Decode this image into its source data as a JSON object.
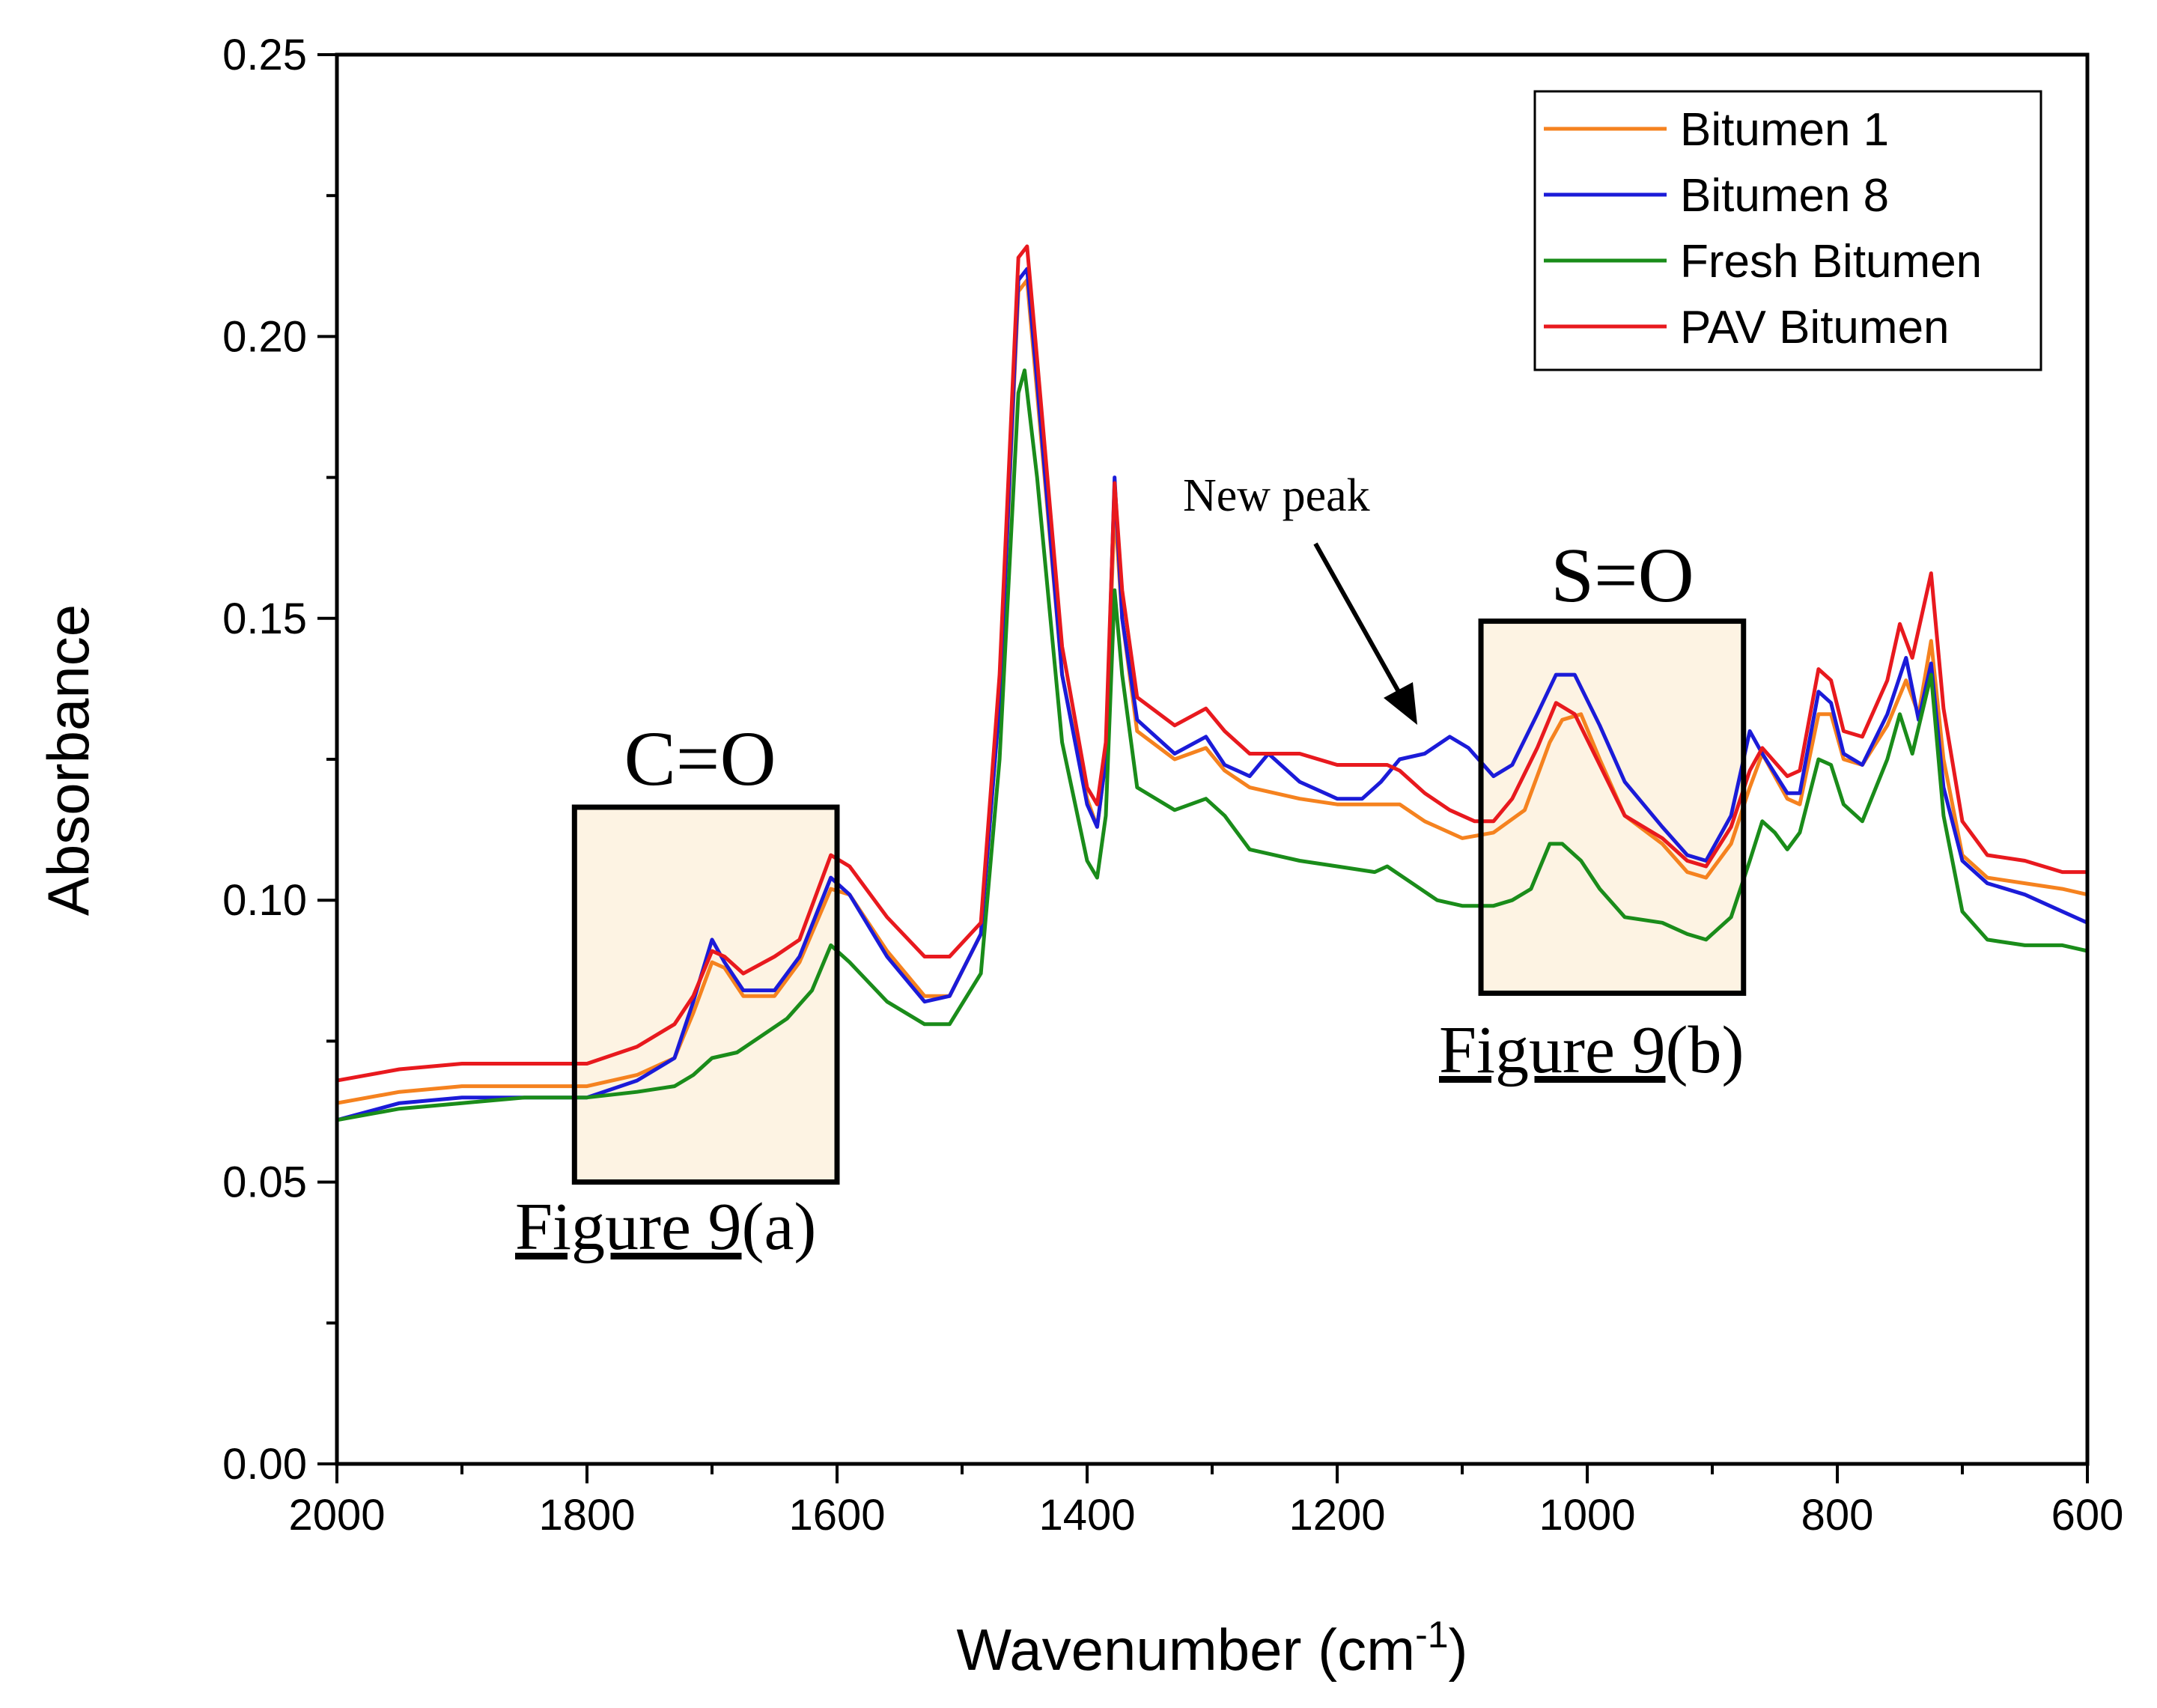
{
  "chart_data": {
    "type": "line",
    "xlabel": "Wavenumber (cm",
    "xlabel_superscript": "-1",
    "xlabel_close": ")",
    "ylabel": "Absorbance",
    "xlim": [
      2000,
      600
    ],
    "ylim": [
      0.0,
      0.25
    ],
    "x_ticks": [
      2000,
      1800,
      1600,
      1400,
      1200,
      1000,
      800,
      600
    ],
    "x_tick_labels": [
      "2000",
      "1800",
      "1600",
      "1400",
      "1200",
      "1000",
      "800",
      "600"
    ],
    "y_ticks": [
      0.0,
      0.05,
      0.1,
      0.15,
      0.2,
      0.25
    ],
    "y_tick_labels": [
      "0.00",
      "0.05",
      "0.10",
      "0.15",
      "0.20",
      "0.25"
    ],
    "grid": false,
    "legend_position": "top-right",
    "series": [
      {
        "name": "Bitumen 1",
        "color": "#f5821f",
        "points": [
          [
            2000,
            0.064
          ],
          [
            1950,
            0.066
          ],
          [
            1900,
            0.067
          ],
          [
            1850,
            0.067
          ],
          [
            1800,
            0.067
          ],
          [
            1760,
            0.069
          ],
          [
            1730,
            0.072
          ],
          [
            1715,
            0.08
          ],
          [
            1700,
            0.089
          ],
          [
            1690,
            0.088
          ],
          [
            1675,
            0.083
          ],
          [
            1650,
            0.083
          ],
          [
            1630,
            0.089
          ],
          [
            1605,
            0.102
          ],
          [
            1590,
            0.101
          ],
          [
            1560,
            0.091
          ],
          [
            1530,
            0.083
          ],
          [
            1510,
            0.083
          ],
          [
            1485,
            0.094
          ],
          [
            1470,
            0.135
          ],
          [
            1455,
            0.208
          ],
          [
            1448,
            0.21
          ],
          [
            1440,
            0.19
          ],
          [
            1420,
            0.14
          ],
          [
            1400,
            0.118
          ],
          [
            1392,
            0.113
          ],
          [
            1385,
            0.125
          ],
          [
            1378,
            0.17
          ],
          [
            1372,
            0.15
          ],
          [
            1360,
            0.13
          ],
          [
            1330,
            0.125
          ],
          [
            1305,
            0.127
          ],
          [
            1290,
            0.123
          ],
          [
            1270,
            0.12
          ],
          [
            1230,
            0.118
          ],
          [
            1200,
            0.117
          ],
          [
            1170,
            0.117
          ],
          [
            1150,
            0.117
          ],
          [
            1130,
            0.114
          ],
          [
            1100,
            0.111
          ],
          [
            1075,
            0.112
          ],
          [
            1050,
            0.116
          ],
          [
            1030,
            0.128
          ],
          [
            1020,
            0.132
          ],
          [
            1005,
            0.133
          ],
          [
            990,
            0.125
          ],
          [
            970,
            0.115
          ],
          [
            940,
            0.11
          ],
          [
            920,
            0.105
          ],
          [
            905,
            0.104
          ],
          [
            885,
            0.11
          ],
          [
            870,
            0.12
          ],
          [
            860,
            0.126
          ],
          [
            840,
            0.118
          ],
          [
            830,
            0.117
          ],
          [
            815,
            0.133
          ],
          [
            805,
            0.133
          ],
          [
            795,
            0.125
          ],
          [
            780,
            0.124
          ],
          [
            760,
            0.131
          ],
          [
            745,
            0.139
          ],
          [
            735,
            0.133
          ],
          [
            725,
            0.146
          ],
          [
            715,
            0.125
          ],
          [
            700,
            0.108
          ],
          [
            680,
            0.104
          ],
          [
            650,
            0.103
          ],
          [
            620,
            0.102
          ],
          [
            600,
            0.101
          ]
        ]
      },
      {
        "name": "Bitumen 8",
        "color": "#1b1bd8",
        "points": [
          [
            2000,
            0.061
          ],
          [
            1950,
            0.064
          ],
          [
            1900,
            0.065
          ],
          [
            1850,
            0.065
          ],
          [
            1800,
            0.065
          ],
          [
            1760,
            0.068
          ],
          [
            1730,
            0.072
          ],
          [
            1715,
            0.082
          ],
          [
            1700,
            0.093
          ],
          [
            1690,
            0.089
          ],
          [
            1675,
            0.084
          ],
          [
            1650,
            0.084
          ],
          [
            1630,
            0.09
          ],
          [
            1605,
            0.104
          ],
          [
            1590,
            0.101
          ],
          [
            1560,
            0.09
          ],
          [
            1530,
            0.082
          ],
          [
            1510,
            0.083
          ],
          [
            1485,
            0.094
          ],
          [
            1470,
            0.135
          ],
          [
            1455,
            0.21
          ],
          [
            1448,
            0.212
          ],
          [
            1440,
            0.192
          ],
          [
            1420,
            0.14
          ],
          [
            1400,
            0.117
          ],
          [
            1392,
            0.113
          ],
          [
            1385,
            0.125
          ],
          [
            1378,
            0.175
          ],
          [
            1372,
            0.15
          ],
          [
            1360,
            0.132
          ],
          [
            1330,
            0.126
          ],
          [
            1305,
            0.129
          ],
          [
            1290,
            0.124
          ],
          [
            1270,
            0.122
          ],
          [
            1255,
            0.126
          ],
          [
            1230,
            0.121
          ],
          [
            1200,
            0.118
          ],
          [
            1180,
            0.118
          ],
          [
            1165,
            0.121
          ],
          [
            1150,
            0.125
          ],
          [
            1130,
            0.126
          ],
          [
            1110,
            0.129
          ],
          [
            1095,
            0.127
          ],
          [
            1075,
            0.122
          ],
          [
            1060,
            0.124
          ],
          [
            1040,
            0.133
          ],
          [
            1025,
            0.14
          ],
          [
            1010,
            0.14
          ],
          [
            990,
            0.131
          ],
          [
            970,
            0.121
          ],
          [
            940,
            0.113
          ],
          [
            920,
            0.108
          ],
          [
            905,
            0.107
          ],
          [
            885,
            0.115
          ],
          [
            870,
            0.13
          ],
          [
            860,
            0.126
          ],
          [
            840,
            0.119
          ],
          [
            830,
            0.119
          ],
          [
            815,
            0.137
          ],
          [
            805,
            0.135
          ],
          [
            795,
            0.126
          ],
          [
            780,
            0.124
          ],
          [
            760,
            0.133
          ],
          [
            745,
            0.143
          ],
          [
            735,
            0.132
          ],
          [
            725,
            0.142
          ],
          [
            715,
            0.12
          ],
          [
            700,
            0.107
          ],
          [
            680,
            0.103
          ],
          [
            650,
            0.101
          ],
          [
            620,
            0.098
          ],
          [
            600,
            0.096
          ]
        ]
      },
      {
        "name": "Fresh Bitumen",
        "color": "#1a8c1a",
        "points": [
          [
            2000,
            0.061
          ],
          [
            1950,
            0.063
          ],
          [
            1900,
            0.064
          ],
          [
            1850,
            0.065
          ],
          [
            1800,
            0.065
          ],
          [
            1760,
            0.066
          ],
          [
            1730,
            0.067
          ],
          [
            1715,
            0.069
          ],
          [
            1700,
            0.072
          ],
          [
            1680,
            0.073
          ],
          [
            1660,
            0.076
          ],
          [
            1640,
            0.079
          ],
          [
            1620,
            0.084
          ],
          [
            1605,
            0.092
          ],
          [
            1590,
            0.089
          ],
          [
            1560,
            0.082
          ],
          [
            1530,
            0.078
          ],
          [
            1510,
            0.078
          ],
          [
            1485,
            0.087
          ],
          [
            1470,
            0.125
          ],
          [
            1455,
            0.19
          ],
          [
            1450,
            0.194
          ],
          [
            1440,
            0.175
          ],
          [
            1420,
            0.128
          ],
          [
            1400,
            0.107
          ],
          [
            1392,
            0.104
          ],
          [
            1385,
            0.115
          ],
          [
            1378,
            0.155
          ],
          [
            1372,
            0.14
          ],
          [
            1360,
            0.12
          ],
          [
            1330,
            0.116
          ],
          [
            1305,
            0.118
          ],
          [
            1290,
            0.115
          ],
          [
            1270,
            0.109
          ],
          [
            1230,
            0.107
          ],
          [
            1200,
            0.106
          ],
          [
            1170,
            0.105
          ],
          [
            1160,
            0.106
          ],
          [
            1140,
            0.103
          ],
          [
            1120,
            0.1
          ],
          [
            1100,
            0.099
          ],
          [
            1075,
            0.099
          ],
          [
            1060,
            0.1
          ],
          [
            1045,
            0.102
          ],
          [
            1030,
            0.11
          ],
          [
            1020,
            0.11
          ],
          [
            1005,
            0.107
          ],
          [
            990,
            0.102
          ],
          [
            970,
            0.097
          ],
          [
            940,
            0.096
          ],
          [
            920,
            0.094
          ],
          [
            905,
            0.093
          ],
          [
            885,
            0.097
          ],
          [
            870,
            0.107
          ],
          [
            860,
            0.114
          ],
          [
            850,
            0.112
          ],
          [
            840,
            0.109
          ],
          [
            830,
            0.112
          ],
          [
            815,
            0.125
          ],
          [
            805,
            0.124
          ],
          [
            795,
            0.117
          ],
          [
            780,
            0.114
          ],
          [
            760,
            0.125
          ],
          [
            750,
            0.133
          ],
          [
            740,
            0.126
          ],
          [
            725,
            0.14
          ],
          [
            715,
            0.115
          ],
          [
            700,
            0.098
          ],
          [
            680,
            0.093
          ],
          [
            650,
            0.092
          ],
          [
            620,
            0.092
          ],
          [
            600,
            0.091
          ]
        ]
      },
      {
        "name": "PAV Bitumen",
        "color": "#e8191e",
        "points": [
          [
            2000,
            0.068
          ],
          [
            1950,
            0.07
          ],
          [
            1900,
            0.071
          ],
          [
            1850,
            0.071
          ],
          [
            1800,
            0.071
          ],
          [
            1760,
            0.074
          ],
          [
            1730,
            0.078
          ],
          [
            1715,
            0.083
          ],
          [
            1700,
            0.091
          ],
          [
            1690,
            0.09
          ],
          [
            1675,
            0.087
          ],
          [
            1650,
            0.09
          ],
          [
            1630,
            0.093
          ],
          [
            1605,
            0.108
          ],
          [
            1590,
            0.106
          ],
          [
            1560,
            0.097
          ],
          [
            1530,
            0.09
          ],
          [
            1510,
            0.09
          ],
          [
            1485,
            0.096
          ],
          [
            1470,
            0.14
          ],
          [
            1455,
            0.214
          ],
          [
            1448,
            0.216
          ],
          [
            1440,
            0.196
          ],
          [
            1420,
            0.145
          ],
          [
            1400,
            0.12
          ],
          [
            1392,
            0.117
          ],
          [
            1385,
            0.128
          ],
          [
            1378,
            0.174
          ],
          [
            1372,
            0.155
          ],
          [
            1360,
            0.136
          ],
          [
            1330,
            0.131
          ],
          [
            1305,
            0.134
          ],
          [
            1290,
            0.13
          ],
          [
            1270,
            0.126
          ],
          [
            1230,
            0.126
          ],
          [
            1200,
            0.124
          ],
          [
            1180,
            0.124
          ],
          [
            1160,
            0.124
          ],
          [
            1150,
            0.123
          ],
          [
            1130,
            0.119
          ],
          [
            1110,
            0.116
          ],
          [
            1090,
            0.114
          ],
          [
            1075,
            0.114
          ],
          [
            1060,
            0.118
          ],
          [
            1040,
            0.127
          ],
          [
            1025,
            0.135
          ],
          [
            1010,
            0.133
          ],
          [
            990,
            0.124
          ],
          [
            970,
            0.115
          ],
          [
            940,
            0.111
          ],
          [
            920,
            0.107
          ],
          [
            905,
            0.106
          ],
          [
            885,
            0.113
          ],
          [
            870,
            0.123
          ],
          [
            860,
            0.127
          ],
          [
            840,
            0.122
          ],
          [
            830,
            0.123
          ],
          [
            815,
            0.141
          ],
          [
            805,
            0.139
          ],
          [
            795,
            0.13
          ],
          [
            780,
            0.129
          ],
          [
            760,
            0.139
          ],
          [
            750,
            0.149
          ],
          [
            740,
            0.143
          ],
          [
            725,
            0.158
          ],
          [
            715,
            0.134
          ],
          [
            700,
            0.114
          ],
          [
            680,
            0.108
          ],
          [
            650,
            0.107
          ],
          [
            620,
            0.105
          ],
          [
            600,
            0.105
          ]
        ]
      }
    ],
    "annotations": {
      "co_label": "C=O",
      "so_label": "S=O",
      "new_peak_label": "New peak",
      "fig9a_prefix": "Figure 9",
      "fig9a_suffix": "(a)",
      "fig9b_prefix": "Figure 9",
      "fig9b_suffix": "(b)",
      "box_fill": "#fdf3e3"
    }
  }
}
